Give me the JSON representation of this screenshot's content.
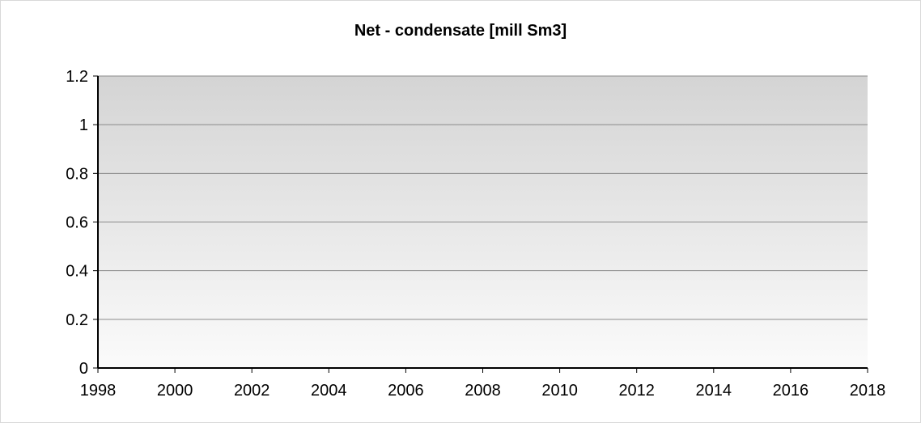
{
  "chart_data": {
    "type": "line",
    "title": "Net - condensate [mill Sm3]",
    "xlabel": "",
    "ylabel": "",
    "x_ticks": [
      "1998",
      "2000",
      "2002",
      "2004",
      "2006",
      "2008",
      "2010",
      "2012",
      "2014",
      "2016",
      "2018"
    ],
    "y_ticks": [
      "0",
      "0.2",
      "0.4",
      "0.6",
      "0.8",
      "1",
      "1.2"
    ],
    "xlim": [
      1998,
      2018
    ],
    "ylim": [
      0,
      1.2
    ],
    "series": [],
    "grid": true,
    "legend": "none"
  },
  "colors": {
    "plot_gradient_top": "#d4d4d4",
    "plot_gradient_bottom": "#fbfbfb",
    "grid": "#8a8a8a",
    "axis": "#000000"
  }
}
